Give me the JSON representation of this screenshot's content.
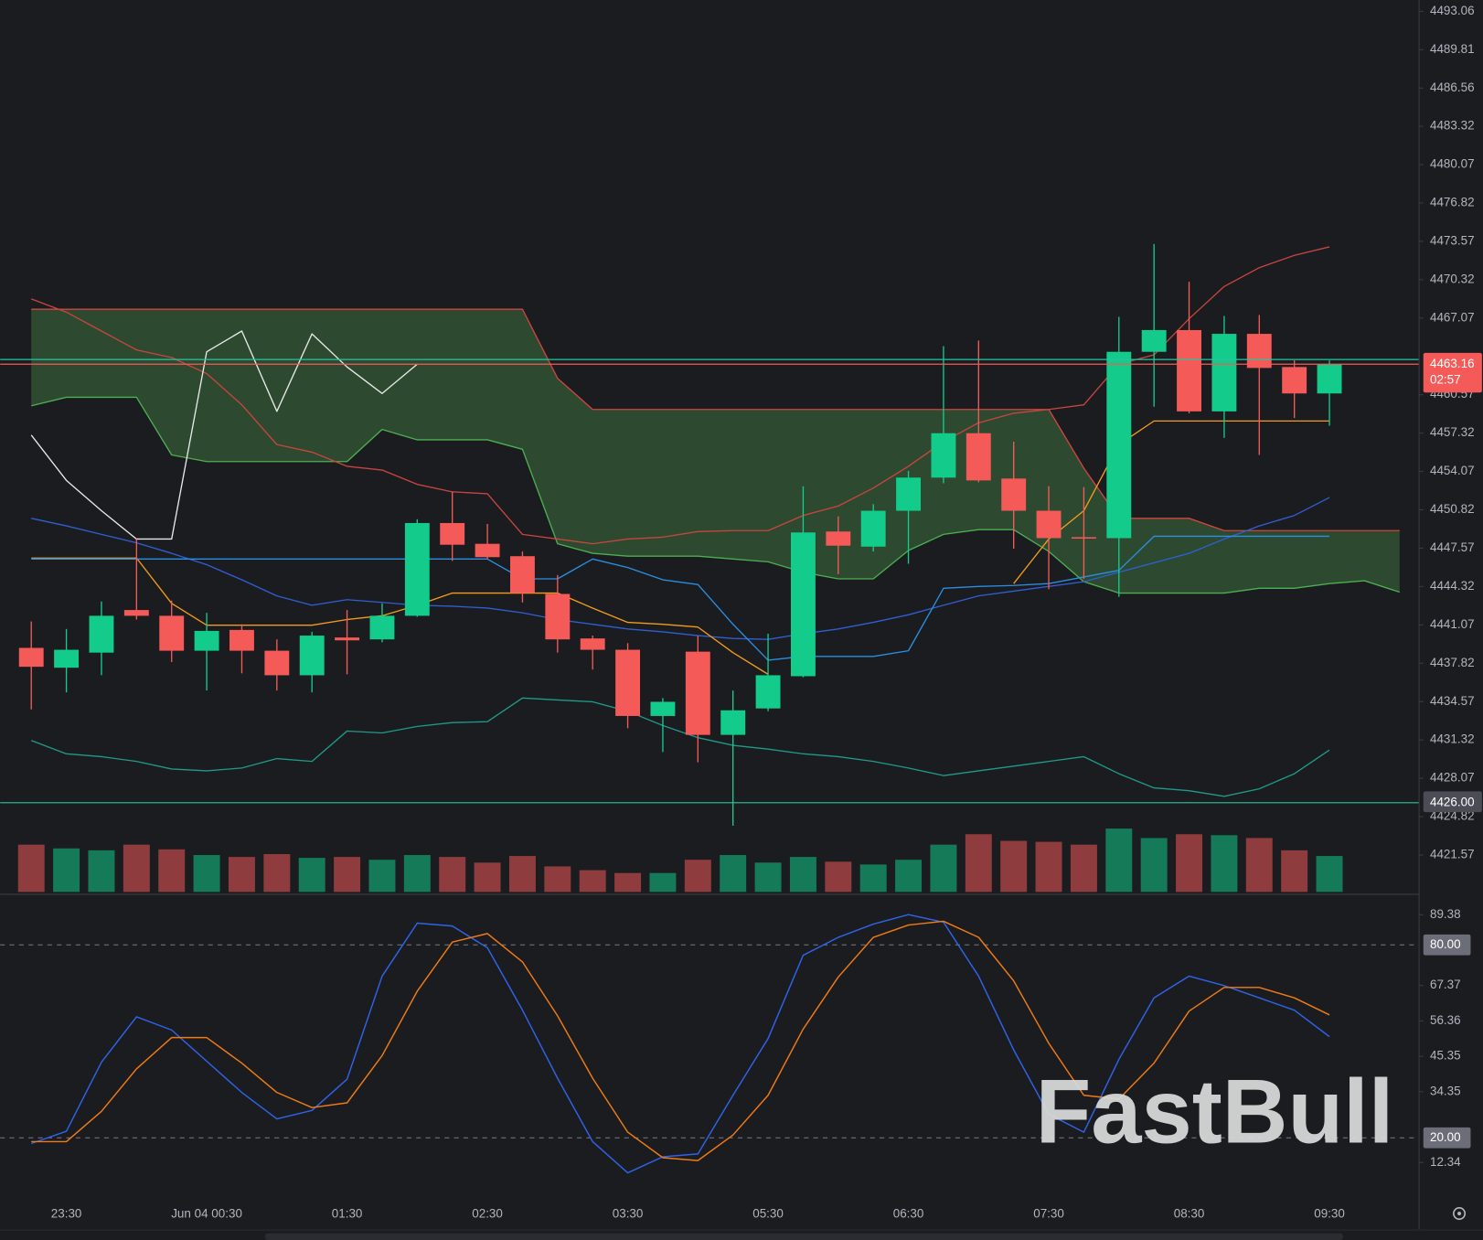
{
  "chart_data": [
    {
      "type": "candlestick",
      "categories": [
        null,
        "23:30",
        null,
        null,
        null,
        "Jun 04 00:30",
        null,
        null,
        null,
        "01:30",
        null,
        null,
        null,
        "02:30",
        null,
        null,
        null,
        "03:30",
        null,
        null,
        null,
        "05:30",
        null,
        null,
        null,
        "06:30",
        null,
        null,
        null,
        "07:30",
        null,
        null,
        null,
        "08:30",
        null,
        null,
        null,
        "09:30",
        null,
        null
      ],
      "open": [
        4439.12,
        4437.44,
        4438.72,
        4442.33,
        4441.84,
        4438.88,
        4440.64,
        4438.88,
        4436.8,
        4440.0,
        4439.84,
        4441.84,
        4449.7,
        4447.94,
        4446.89,
        4443.69,
        4439.92,
        4438.96,
        4433.35,
        4438.8,
        4431.75,
        4433.99,
        4436.72,
        4448.98,
        4447.7,
        4450.74,
        4453.55,
        4457.31,
        4453.47,
        4450.74,
        4448.5,
        4448.42,
        4464.21,
        4466.05,
        4459.16,
        4465.73,
        4462.92,
        4460.68,
        null,
        null
      ],
      "high": [
        4441.36,
        4440.72,
        4443.05,
        4448.34,
        4443.13,
        4442.09,
        4441.12,
        4439.84,
        4440.48,
        4442.33,
        4442.89,
        4450.02,
        4452.34,
        4449.62,
        4447.29,
        4445.29,
        4440.16,
        4439.52,
        4434.87,
        4440.16,
        4435.51,
        4440.32,
        4452.82,
        4450.26,
        4451.3,
        4454.11,
        4464.69,
        4465.17,
        4456.59,
        4452.82,
        4452.74,
        4467.17,
        4473.34,
        4470.14,
        4467.25,
        4467.33,
        4463.48,
        4463.48,
        null,
        null
      ],
      "low": [
        4433.91,
        4435.35,
        4436.8,
        4441.52,
        4437.92,
        4435.51,
        4436.96,
        4435.51,
        4435.35,
        4436.88,
        4439.6,
        4441.76,
        4446.49,
        4446.65,
        4442.97,
        4438.72,
        4437.28,
        4432.31,
        4430.3,
        4429.42,
        4424.05,
        4433.75,
        4436.63,
        4445.37,
        4447.29,
        4446.25,
        4453.07,
        4453.15,
        4447.53,
        4444.09,
        4444.97,
        4443.45,
        4459.56,
        4459.0,
        4456.91,
        4455.47,
        4458.6,
        4457.95,
        null,
        null
      ],
      "close": [
        4437.52,
        4438.96,
        4441.84,
        4441.84,
        4438.88,
        4440.56,
        4438.88,
        4436.8,
        4440.16,
        4439.76,
        4441.84,
        4449.7,
        4447.86,
        4446.81,
        4443.77,
        4439.84,
        4438.96,
        4433.35,
        4434.55,
        4431.75,
        4433.83,
        4436.8,
        4448.9,
        4447.78,
        4450.74,
        4453.55,
        4457.31,
        4453.31,
        4450.74,
        4448.42,
        4448.42,
        4464.21,
        4466.05,
        4459.16,
        4465.73,
        4462.84,
        4460.68,
        4463.16,
        null,
        null
      ],
      "up_color": "#13cc8c",
      "down_color": "#f35a58",
      "ylim": [
        4418.28,
        4494.02
      ],
      "yticks": [
        4493.06,
        4489.81,
        4486.56,
        4483.32,
        4480.07,
        4476.82,
        4473.57,
        4470.32,
        4467.07,
        4460.57,
        4457.32,
        4454.07,
        4450.82,
        4447.57,
        4444.32,
        4441.07,
        4437.82,
        4434.57,
        4431.32,
        4428.07,
        4424.82,
        4421.57
      ],
      "cloud": {
        "fill": "#2d4a30",
        "upper_color": "#d0453f",
        "lower_color": "#4caf50",
        "upper": [
          4467.81,
          4467.81,
          4467.81,
          4467.81,
          4467.81,
          4467.81,
          4467.81,
          4467.81,
          4467.81,
          4467.81,
          4467.81,
          4467.81,
          4467.81,
          4467.81,
          4467.81,
          4461.96,
          4459.32,
          4459.32,
          4459.32,
          4459.32,
          4459.32,
          4459.32,
          4459.32,
          4459.32,
          4459.32,
          4459.32,
          4459.32,
          4459.32,
          4459.32,
          4459.32,
          4454.35,
          4450.1,
          4450.1,
          4450.1,
          4449.06,
          4449.06,
          4449.06,
          4449.06,
          4449.06,
          4449.06
        ],
        "lower": [
          4459.64,
          4460.36,
          4460.36,
          4460.36,
          4455.47,
          4454.91,
          4454.91,
          4454.91,
          4454.91,
          4454.91,
          4457.63,
          4456.75,
          4456.75,
          4456.75,
          4455.95,
          4447.94,
          4447.13,
          4446.89,
          4446.89,
          4446.89,
          4446.65,
          4446.41,
          4445.53,
          4444.97,
          4444.97,
          4447.37,
          4448.74,
          4449.14,
          4449.14,
          4447.29,
          4444.73,
          4443.77,
          4443.77,
          4443.77,
          4443.77,
          4444.17,
          4444.17,
          4444.57,
          4444.81,
          4443.85
        ]
      },
      "lines": [
        {
          "color": "#c8453f",
          "values": [
            4468.69,
            4467.57,
            4465.97,
            4464.37,
            4463.72,
            4462.36,
            4459.72,
            4456.35,
            4455.71,
            4454.51,
            4454.19,
            4452.98,
            4452.34,
            4452.18,
            4448.74,
            4448.34,
            4447.94,
            4448.34,
            4448.5,
            4448.98,
            4449.06,
            4449.06,
            4450.34,
            4451.14,
            4452.66,
            4454.51,
            4456.59,
            4458.19,
            4459.0,
            4459.32,
            4459.72,
            4463.16,
            4463.96,
            4467.01,
            4469.74,
            4471.34,
            4472.38,
            4473.1,
            null,
            null
          ]
        },
        {
          "color": "#2f5fd0",
          "values": [
            4450.1,
            4449.46,
            4448.74,
            4448.02,
            4447.13,
            4446.17,
            4444.89,
            4443.53,
            4442.73,
            4443.21,
            4442.97,
            4442.73,
            4442.65,
            4442.49,
            4442.09,
            4441.52,
            4441.12,
            4440.72,
            4440.48,
            4440.16,
            4439.92,
            4439.84,
            4440.32,
            4440.72,
            4441.28,
            4441.92,
            4442.73,
            4443.53,
            4443.93,
            4444.33,
            4444.73,
            4445.53,
            4446.33,
            4447.13,
            4448.34,
            4449.46,
            4450.34,
            4451.86,
            null,
            null
          ]
        },
        {
          "color": "#1f9a8a",
          "values": [
            4431.27,
            4430.14,
            4429.9,
            4429.5,
            4428.86,
            4428.7,
            4428.94,
            4429.74,
            4429.5,
            4432.07,
            4431.91,
            4432.47,
            4432.79,
            4432.87,
            4434.87,
            4434.71,
            4434.55,
            4433.75,
            4432.55,
            4431.51,
            4430.86,
            4430.54,
            4430.14,
            4429.9,
            4429.5,
            4428.94,
            4428.3,
            4428.7,
            4429.1,
            4429.5,
            4429.9,
            4428.46,
            4427.26,
            4427.02,
            4426.54,
            4427.18,
            4428.46,
            4430.46,
            null,
            null
          ]
        },
        {
          "color": "#f39c1c",
          "values": [
            4446.73,
            4446.73,
            4446.73,
            4446.73,
            4442.89,
            4441.04,
            4441.04,
            4441.04,
            4441.04,
            4441.52,
            4441.84,
            4442.73,
            4443.77,
            4443.77,
            4443.77,
            4443.77,
            4442.49,
            4441.28,
            4441.12,
            4440.88,
            4438.72,
            4436.88,
            null,
            null,
            null,
            null,
            null,
            null,
            4444.57,
            4448.34,
            4450.74,
            4456.35,
            4458.35,
            4458.35,
            4458.35,
            4458.35,
            4458.35,
            4458.35,
            null,
            null
          ]
        },
        {
          "color": "#2a8fe0",
          "values": [
            4446.65,
            4446.65,
            4446.65,
            4446.65,
            4446.65,
            4446.65,
            4446.65,
            4446.65,
            4446.65,
            4446.65,
            4446.65,
            4446.65,
            4446.65,
            4446.65,
            4444.97,
            4444.97,
            4446.65,
            4445.93,
            4444.89,
            4444.49,
            4441.12,
            4438.08,
            4438.4,
            4438.4,
            4438.4,
            4438.88,
            4444.17,
            4444.33,
            4444.41,
            4444.57,
            4445.13,
            4445.69,
            4448.58,
            4448.58,
            4448.58,
            4448.58,
            4448.58,
            4448.58,
            null,
            null
          ]
        },
        {
          "color": "#e8e8e8",
          "values": [
            4457.15,
            4453.31,
            4450.74,
            4448.34,
            4448.34,
            4464.21,
            4465.97,
            4459.16,
            4465.73,
            4462.92,
            4460.68,
            4463.16,
            null,
            null,
            null,
            null,
            null,
            null,
            null,
            null,
            null,
            null,
            null,
            null,
            null,
            null,
            null,
            null,
            null,
            null,
            null,
            null,
            null,
            null,
            null,
            null,
            null,
            null,
            null,
            null
          ]
        }
      ],
      "volume": {
        "ylim": [
          0,
          100
        ],
        "up_color": "#157a58",
        "down_color": "#8e3c3d",
        "values": [
          50,
          46,
          44,
          50,
          45,
          39,
          37,
          40,
          36,
          37,
          34,
          39,
          37,
          31,
          38,
          27,
          23,
          20,
          20,
          34,
          39,
          31,
          37,
          32,
          29,
          34,
          50,
          61,
          54,
          53,
          50,
          67,
          57,
          61,
          60,
          57,
          44,
          38,
          null,
          null
        ]
      },
      "price_lines": [
        {
          "value": 4463.56,
          "color": "#26c6a0"
        },
        {
          "value": 4463.16,
          "label": "4463.16",
          "countdown": "02:57",
          "color": "#f35a58"
        },
        {
          "value": 4426,
          "label": "4426.00",
          "color": "#26c6a0"
        }
      ],
      "watermark": "FastBull"
    },
    {
      "type": "line",
      "series": [
        {
          "color": "#2f63e8",
          "values": [
            18.24,
            22.06,
            43.53,
            57.65,
            53.53,
            43.82,
            34.12,
            25.88,
            28.53,
            38.24,
            70.29,
            86.76,
            85.88,
            79.12,
            59.71,
            38.53,
            18.82,
            9.12,
            14.12,
            15.0,
            33.24,
            50.88,
            76.76,
            82.35,
            86.47,
            89.41,
            87.06,
            70.29,
            47.35,
            27.35,
            21.76,
            44.41,
            63.53,
            70.29,
            67.35,
            63.53,
            59.71,
            51.47,
            null,
            null
          ]
        },
        {
          "color": "#f07b16",
          "values": [
            18.82,
            18.82,
            28.24,
            41.47,
            51.18,
            51.18,
            43.24,
            34.12,
            29.41,
            30.88,
            45.59,
            65.59,
            80.88,
            83.53,
            74.71,
            57.94,
            38.53,
            21.76,
            13.82,
            12.94,
            20.88,
            33.24,
            53.82,
            70.0,
            82.35,
            86.18,
            87.35,
            82.35,
            68.82,
            49.41,
            33.24,
            32.06,
            43.24,
            59.41,
            66.76,
            66.76,
            63.53,
            58.24,
            null,
            null
          ]
        }
      ],
      "ylim": [
        1.76,
        95.88
      ],
      "yticks": [
        89.38,
        67.37,
        56.36,
        45.35,
        34.35,
        12.34
      ],
      "levels": [
        {
          "value": 80,
          "label": "80.00"
        },
        {
          "value": 20,
          "label": "20.00"
        }
      ]
    }
  ]
}
